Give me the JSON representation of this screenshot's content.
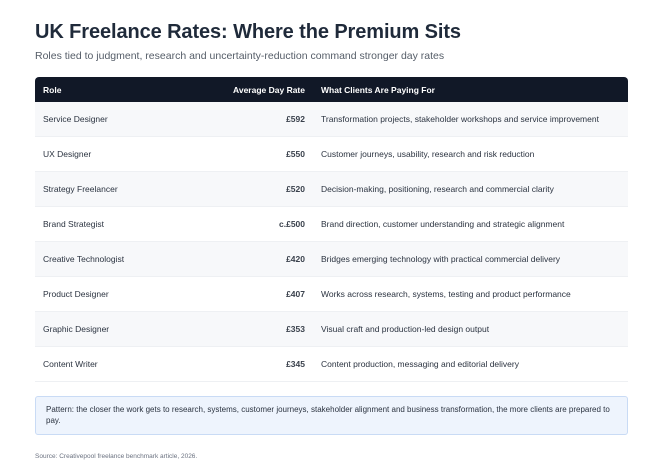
{
  "header": {
    "title": "UK Freelance Rates: Where the Premium Sits",
    "subtitle": "Roles tied to judgment, research and uncertainty-reduction command stronger day rates"
  },
  "table": {
    "columns": [
      "Role",
      "Average Day Rate",
      "What Clients Are Paying For"
    ],
    "rows": [
      {
        "role": "Service Designer",
        "rate": "£592",
        "focus": "Transformation projects, stakeholder workshops and service improvement"
      },
      {
        "role": "UX Designer",
        "rate": "£550",
        "focus": "Customer journeys, usability, research and risk reduction"
      },
      {
        "role": "Strategy Freelancer",
        "rate": "£520",
        "focus": "Decision-making, positioning, research and commercial clarity"
      },
      {
        "role": "Brand Strategist",
        "rate": "c.£500",
        "focus": "Brand direction, customer understanding and strategic alignment"
      },
      {
        "role": "Creative Technologist",
        "rate": "£420",
        "focus": "Bridges emerging technology with practical commercial delivery"
      },
      {
        "role": "Product Designer",
        "rate": "£407",
        "focus": "Works across research, systems, testing and product performance"
      },
      {
        "role": "Graphic Designer",
        "rate": "£353",
        "focus": "Visual craft and production-led design output"
      },
      {
        "role": "Content Writer",
        "rate": "£345",
        "focus": "Content production, messaging and editorial delivery"
      }
    ]
  },
  "pattern_note": "Pattern: the closer the work gets to research, systems, customer journeys, stakeholder alignment and business transformation, the more clients are prepared to pay.",
  "source": "Source: Creativepool freelance benchmark article, 2026.",
  "colors": {
    "header_bg": "#111827",
    "note_bg": "#eef4fd",
    "note_border": "#c9dbf5"
  }
}
